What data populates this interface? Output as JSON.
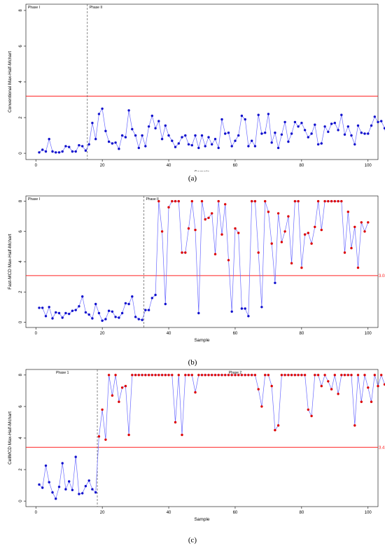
{
  "chart_data": [
    {
      "type": "line",
      "panel": "(a)",
      "caption": "(a)",
      "xlabel": "Sample",
      "ylabel": "Conventional Max-Half-Mchart",
      "xlim": [
        0,
        100
      ],
      "ylim": [
        0,
        8
      ],
      "xticks": [
        0,
        20,
        40,
        60,
        80,
        100
      ],
      "yticks": [
        0,
        2,
        4,
        6,
        8
      ],
      "ucl": 3.2,
      "ucl_label": "",
      "phase_divider_x": 15.5,
      "phases": [
        "Phase I",
        "Phase II"
      ],
      "point_color": "#1010cc",
      "line_color": "#6a6aff",
      "ucl_color": "#ff2020",
      "x_start": 1,
      "values": [
        0.05,
        0.2,
        0.1,
        0.8,
        0.1,
        0.05,
        0.05,
        0.1,
        0.4,
        0.35,
        0.1,
        0.1,
        0.45,
        0.4,
        0.15,
        0.5,
        1.7,
        0.8,
        2.2,
        2.5,
        1.25,
        0.65,
        0.55,
        0.6,
        0.25,
        1.0,
        0.9,
        2.4,
        1.35,
        1.0,
        0.3,
        1.0,
        0.4,
        1.5,
        2.1,
        1.4,
        1.8,
        0.8,
        1.55,
        1.0,
        0.7,
        0.35,
        0.55,
        0.9,
        1.0,
        0.5,
        0.45,
        1.0,
        0.3,
        1.0,
        0.4,
        0.9,
        0.5,
        0.8,
        0.3,
        1.9,
        1.1,
        1.15,
        0.4,
        0.7,
        1.0,
        2.1,
        1.9,
        0.4,
        0.7,
        0.4,
        2.15,
        1.1,
        1.15,
        2.2,
        0.6,
        1.15,
        0.3,
        1.05,
        1.75,
        0.65,
        1.1,
        1.75,
        1.5,
        1.7,
        1.3,
        0.9,
        1.1,
        1.6,
        0.5,
        0.55,
        1.5,
        1.2,
        1.65,
        1.7,
        1.3,
        2.15,
        1.05,
        1.5,
        1.0,
        0.5,
        1.55,
        1.15,
        1.1,
        1.1,
        1.55,
        2.05,
        1.75,
        1.8,
        1.4,
        0.4,
        0.8
      ]
    },
    {
      "type": "line",
      "panel": "(b)",
      "caption": "(b)",
      "xlabel": "Sample",
      "ylabel": "Fast-MCD Max-Half-Mchart",
      "xlim": [
        0,
        100
      ],
      "ylim": [
        0,
        8
      ],
      "xticks": [
        0,
        20,
        40,
        60,
        80,
        100
      ],
      "yticks": [
        0,
        2,
        4,
        6,
        8
      ],
      "ucl": 3.08,
      "ucl_label": "3.08",
      "phase_divider_x": 32.5,
      "phases": [
        "Phase I",
        "Phase II"
      ],
      "point_color": "#1010cc",
      "ooc_color": "#dd0000",
      "line_color": "#6a6aff",
      "ucl_color": "#ff2020",
      "x_start": 1,
      "values": [
        0.95,
        0.95,
        0.4,
        1.0,
        0.25,
        0.65,
        0.6,
        0.3,
        0.6,
        0.55,
        0.75,
        0.8,
        1.05,
        1.7,
        0.65,
        0.5,
        0.25,
        1.2,
        0.6,
        0.1,
        0.2,
        0.75,
        0.7,
        0.35,
        0.3,
        0.6,
        1.25,
        1.2,
        1.7,
        0.35,
        0.2,
        0.15,
        0.8,
        0.8,
        1.6,
        1.8,
        8.0,
        6.0,
        1.2,
        7.6,
        8.0,
        8.0,
        8.0,
        4.6,
        4.6,
        6.2,
        8.0,
        6.1,
        0.6,
        8.0,
        6.8,
        6.9,
        7.2,
        4.5,
        8.0,
        5.8,
        7.8,
        4.1,
        0.7,
        6.2,
        5.9,
        0.9,
        0.9,
        0.4,
        8.0,
        8.0,
        4.6,
        1.0,
        8.0,
        7.3,
        5.2,
        2.6,
        7.2,
        5.3,
        6.0,
        7.0,
        3.9,
        8.0,
        8.0,
        3.6,
        5.8,
        5.9,
        5.2,
        6.3,
        8.0,
        6.1,
        8.0,
        8.0,
        8.0,
        8.0,
        8.0,
        8.0,
        4.6,
        7.3,
        4.9,
        6.3,
        3.6,
        6.6,
        6.0,
        6.6
      ]
    },
    {
      "type": "line",
      "panel": "(c)",
      "caption": "(c)",
      "xlabel": "Sample",
      "ylabel": "CellMCD Max-Half-Mchart",
      "xlim": [
        0,
        100
      ],
      "ylim": [
        0,
        8
      ],
      "xticks": [
        0,
        20,
        40,
        60,
        80,
        100
      ],
      "yticks": [
        0,
        2,
        4,
        6,
        8
      ],
      "ucl": 3.41,
      "ucl_label": "3.41",
      "phase_divider_x": 18.5,
      "phases": [
        "Phase 1",
        "Phase 2"
      ],
      "point_color": "#1010cc",
      "ooc_color": "#dd0000",
      "line_color": "#6a6aff",
      "ucl_color": "#ff2020",
      "x_start": 1,
      "values": [
        1.05,
        0.85,
        2.25,
        1.2,
        0.55,
        0.15,
        0.9,
        2.4,
        0.75,
        1.25,
        0.7,
        2.8,
        0.45,
        0.5,
        0.95,
        1.3,
        0.75,
        0.55,
        4.1,
        5.8,
        3.9,
        8.0,
        6.7,
        8.0,
        6.3,
        7.2,
        7.3,
        4.2,
        8.0,
        8.0,
        8.0,
        8.0,
        8.0,
        8.0,
        8.0,
        8.0,
        8.0,
        8.0,
        8.0,
        8.0,
        8.0,
        5.0,
        8.0,
        4.2,
        8.0,
        8.0,
        8.0,
        6.9,
        8.0,
        8.0,
        8.0,
        8.0,
        8.0,
        8.0,
        8.0,
        8.0,
        8.0,
        8.0,
        8.0,
        8.0,
        8.0,
        8.0,
        8.0,
        8.0,
        8.0,
        8.0,
        7.1,
        6.0,
        8.0,
        8.0,
        7.3,
        4.5,
        4.8,
        8.0,
        8.0,
        8.0,
        8.0,
        8.0,
        8.0,
        8.0,
        8.0,
        5.8,
        5.4,
        8.0,
        8.0,
        7.3,
        8.0,
        7.6,
        7.1,
        8.0,
        6.8,
        8.0,
        8.0,
        8.0,
        8.0,
        4.8,
        8.0,
        6.3,
        8.0,
        7.2,
        6.3,
        8.0,
        7.3,
        8.0,
        7.4
      ]
    }
  ]
}
